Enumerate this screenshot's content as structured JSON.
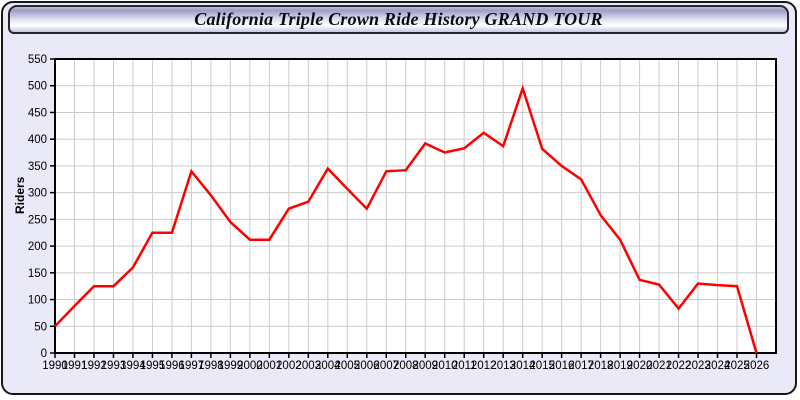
{
  "page": {
    "title": "California Triple Crown Ride History GRAND TOUR",
    "background_color": "#e9e9f7",
    "frame_border_color": "#16161d"
  },
  "chart_data": {
    "type": "line",
    "title": "California Triple Crown Ride History GRAND TOUR",
    "xlabel": "",
    "ylabel": "Riders",
    "x": [
      1990,
      1991,
      1992,
      1993,
      1994,
      1995,
      1996,
      1997,
      1998,
      1999,
      2000,
      2001,
      2002,
      2003,
      2004,
      2005,
      2006,
      2007,
      2008,
      2009,
      2010,
      2011,
      2012,
      2013,
      2014,
      2015,
      2016,
      2017,
      2018,
      2019,
      2020,
      2021,
      2022,
      2023,
      2024,
      2025,
      2026
    ],
    "series": [
      {
        "name": "Riders",
        "color": "#ff0000",
        "values": [
          50,
          88,
          125,
          125,
          160,
          225,
          225,
          340,
          295,
          245,
          212,
          212,
          270,
          283,
          345,
          307,
          270,
          340,
          342,
          392,
          375,
          383,
          412,
          387,
          495,
          382,
          350,
          325,
          258,
          212,
          137,
          128,
          83,
          130,
          127,
          125,
          0
        ]
      }
    ],
    "ylim": [
      0,
      550
    ],
    "ytick_step": 50,
    "grid": true,
    "legend_position": "none",
    "grid_color": "#cccccc",
    "plot_background": "#ffffff",
    "axis_color": "#000000"
  }
}
